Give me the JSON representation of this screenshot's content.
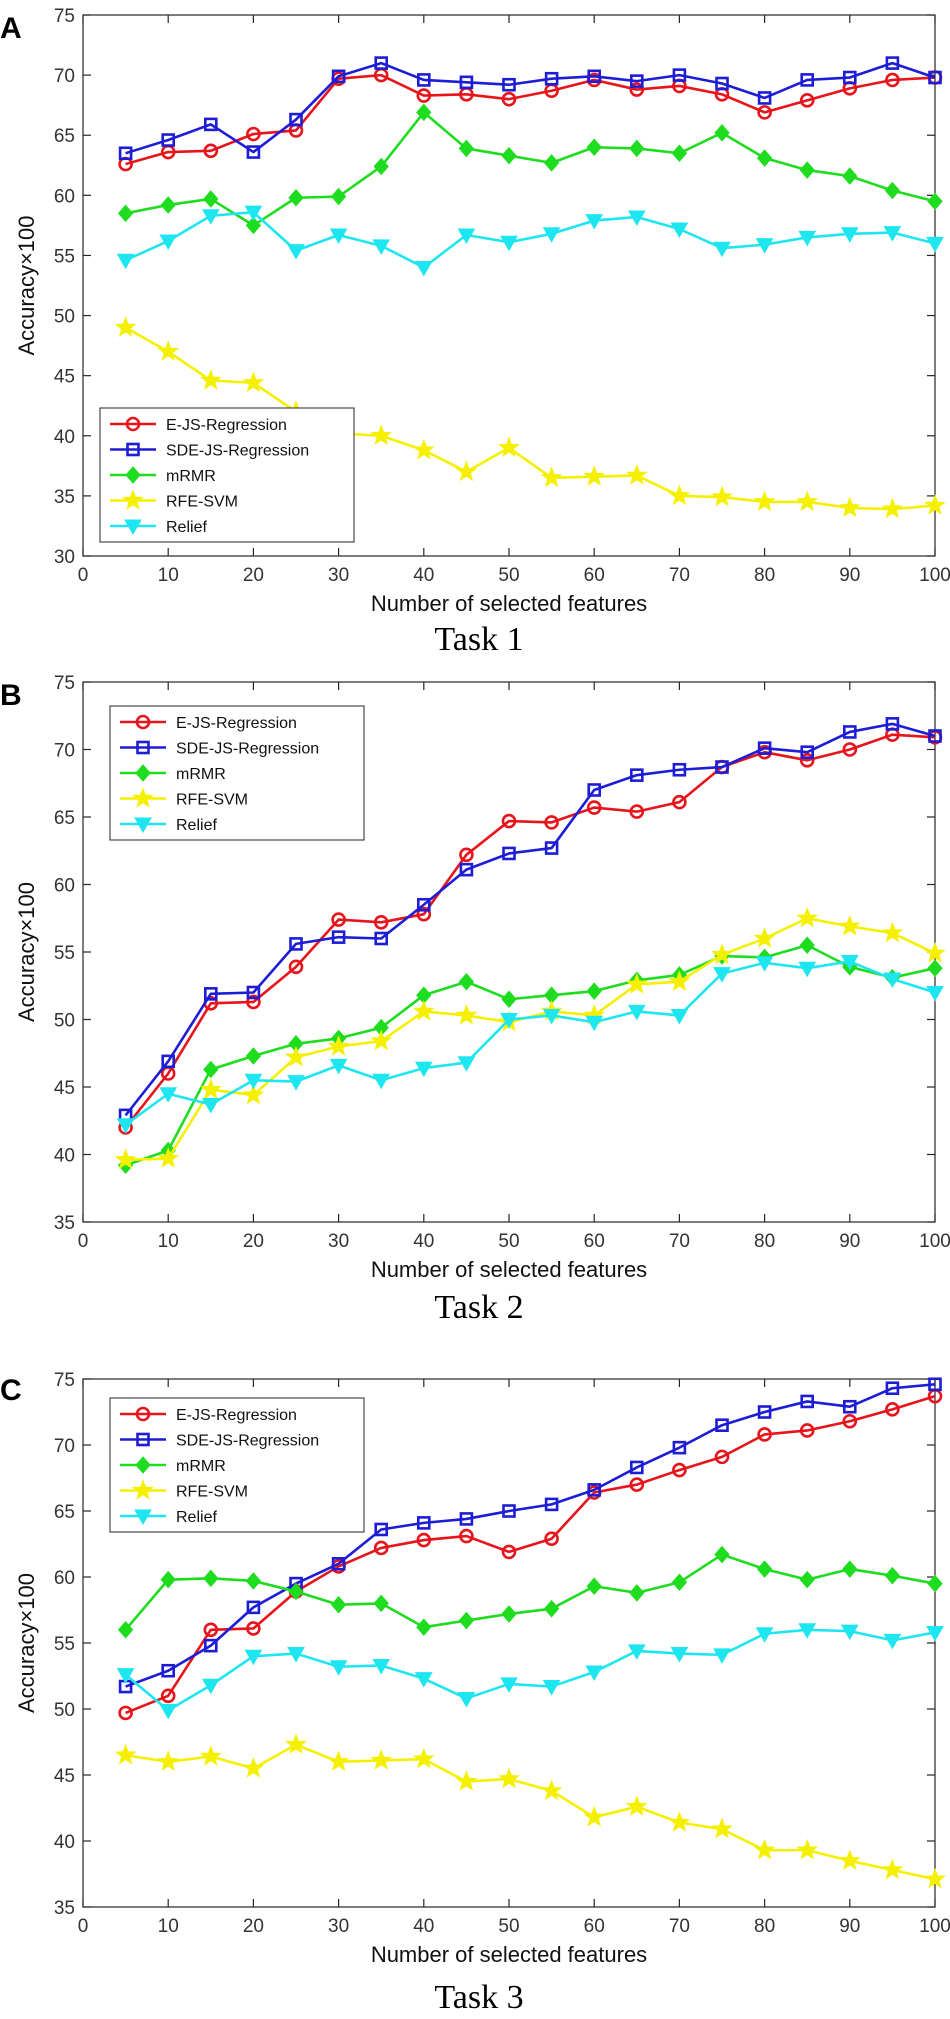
{
  "chart_data": [
    {
      "type": "line",
      "panel": "A",
      "caption": "Task 1",
      "xlabel": "Number of selected features",
      "ylabel": "Accuracy×100",
      "xlim": [
        0,
        100
      ],
      "ylim": [
        30,
        75
      ],
      "xticks": [
        0,
        10,
        20,
        30,
        40,
        50,
        60,
        70,
        80,
        90,
        100
      ],
      "yticks": [
        30,
        35,
        40,
        45,
        50,
        55,
        60,
        65,
        70,
        75
      ],
      "legend_position": "bottom-left",
      "x": [
        5,
        10,
        15,
        20,
        25,
        30,
        35,
        40,
        45,
        50,
        55,
        60,
        65,
        70,
        75,
        80,
        85,
        90,
        95,
        100
      ],
      "series": [
        {
          "name": "E-JS-Regression",
          "color": "#e8141b",
          "marker": "circle",
          "values": [
            62.6,
            63.6,
            63.7,
            65.1,
            65.4,
            69.7,
            70.0,
            68.3,
            68.4,
            68.0,
            68.7,
            69.6,
            68.8,
            69.1,
            68.4,
            66.9,
            67.9,
            68.9,
            69.6,
            69.8
          ]
        },
        {
          "name": "SDE-JS-Regression",
          "color": "#1d1dd6",
          "marker": "square",
          "values": [
            63.5,
            64.6,
            65.9,
            63.6,
            66.3,
            69.9,
            71.0,
            69.6,
            69.4,
            69.2,
            69.7,
            69.9,
            69.5,
            70.0,
            69.3,
            68.1,
            69.6,
            69.8,
            71.0,
            69.8
          ]
        },
        {
          "name": "mRMR",
          "color": "#1edc1e",
          "marker": "diamond",
          "values": [
            58.5,
            59.2,
            59.7,
            57.5,
            59.8,
            59.9,
            62.4,
            66.9,
            63.9,
            63.3,
            62.7,
            64.0,
            63.9,
            63.5,
            65.2,
            63.1,
            62.1,
            61.6,
            60.4,
            59.5
          ]
        },
        {
          "name": "RFE-SVM",
          "color": "#f5f000",
          "marker": "star",
          "values": [
            49.0,
            47.0,
            44.6,
            44.4,
            42.0,
            40.2,
            40.0,
            38.8,
            37.0,
            39.0,
            36.5,
            36.6,
            36.7,
            35.0,
            34.9,
            34.5,
            34.5,
            34.0,
            33.9,
            34.2
          ]
        },
        {
          "name": "Relief",
          "color": "#1ee6f0",
          "marker": "triangle-down",
          "values": [
            54.6,
            56.2,
            58.3,
            58.6,
            55.4,
            56.7,
            55.8,
            54.0,
            56.7,
            56.1,
            56.8,
            57.9,
            58.2,
            57.2,
            55.6,
            55.9,
            56.5,
            56.8,
            56.9,
            56.0
          ]
        }
      ]
    },
    {
      "type": "line",
      "panel": "B",
      "caption": "Task 2",
      "xlabel": "Number of selected features",
      "ylabel": "Accuracy×100",
      "xlim": [
        0,
        100
      ],
      "ylim": [
        35,
        75
      ],
      "xticks": [
        0,
        10,
        20,
        30,
        40,
        50,
        60,
        70,
        80,
        90,
        100
      ],
      "yticks": [
        35,
        40,
        45,
        50,
        55,
        60,
        65,
        70,
        75
      ],
      "legend_position": "top-left",
      "x": [
        5,
        10,
        15,
        20,
        25,
        30,
        35,
        40,
        45,
        50,
        55,
        60,
        65,
        70,
        75,
        80,
        85,
        90,
        95,
        100
      ],
      "series": [
        {
          "name": "E-JS-Regression",
          "color": "#e8141b",
          "marker": "circle",
          "values": [
            42.0,
            46.0,
            51.2,
            51.3,
            53.9,
            57.4,
            57.2,
            57.8,
            62.2,
            64.7,
            64.6,
            65.7,
            65.4,
            66.1,
            68.7,
            69.8,
            69.2,
            70.0,
            71.1,
            70.9
          ]
        },
        {
          "name": "SDE-JS-Regression",
          "color": "#1d1dd6",
          "marker": "square",
          "values": [
            42.9,
            46.9,
            51.9,
            52.0,
            55.6,
            56.1,
            56.0,
            58.5,
            61.1,
            62.3,
            62.7,
            67.0,
            68.1,
            68.5,
            68.7,
            70.1,
            69.8,
            71.3,
            71.9,
            71.0
          ]
        },
        {
          "name": "mRMR",
          "color": "#1edc1e",
          "marker": "diamond",
          "values": [
            39.2,
            40.3,
            46.3,
            47.3,
            48.2,
            48.6,
            49.4,
            51.8,
            52.8,
            51.5,
            51.8,
            52.1,
            52.9,
            53.3,
            54.7,
            54.6,
            55.5,
            53.9,
            53.1,
            53.8
          ]
        },
        {
          "name": "RFE-SVM",
          "color": "#f5f000",
          "marker": "star",
          "values": [
            39.6,
            39.7,
            44.8,
            44.4,
            47.2,
            48.0,
            48.4,
            50.6,
            50.3,
            49.8,
            50.6,
            50.3,
            52.6,
            52.8,
            54.8,
            56.0,
            57.5,
            56.9,
            56.4,
            54.9
          ]
        },
        {
          "name": "Relief",
          "color": "#1ee6f0",
          "marker": "triangle-down",
          "values": [
            42.2,
            44.5,
            43.7,
            45.5,
            45.4,
            46.6,
            45.5,
            46.4,
            46.8,
            50.0,
            50.3,
            49.8,
            50.6,
            50.3,
            53.4,
            54.2,
            53.8,
            54.3,
            53.0,
            52.0
          ]
        }
      ]
    },
    {
      "type": "line",
      "panel": "C",
      "caption": "Task 3",
      "xlabel": "Number of selected features",
      "ylabel": "Accuracy×100",
      "xlim": [
        0,
        100
      ],
      "ylim": [
        35,
        75
      ],
      "xticks": [
        0,
        10,
        20,
        30,
        40,
        50,
        60,
        70,
        80,
        90,
        100
      ],
      "yticks": [
        35,
        40,
        45,
        50,
        55,
        60,
        65,
        70,
        75
      ],
      "legend_position": "top-left",
      "x": [
        5,
        10,
        15,
        20,
        25,
        30,
        35,
        40,
        45,
        50,
        55,
        60,
        65,
        70,
        75,
        80,
        85,
        90,
        95,
        100
      ],
      "series": [
        {
          "name": "E-JS-Regression",
          "color": "#e8141b",
          "marker": "circle",
          "values": [
            49.7,
            51.0,
            56.0,
            56.1,
            58.9,
            60.8,
            62.2,
            62.8,
            63.1,
            61.9,
            62.9,
            66.4,
            67.0,
            68.1,
            69.1,
            70.8,
            71.1,
            71.8,
            72.7,
            73.7
          ]
        },
        {
          "name": "SDE-JS-Regression",
          "color": "#1d1dd6",
          "marker": "square",
          "values": [
            51.7,
            52.9,
            54.8,
            57.7,
            59.5,
            61.0,
            63.6,
            64.1,
            64.4,
            65.0,
            65.5,
            66.6,
            68.3,
            69.8,
            71.5,
            72.5,
            73.3,
            72.9,
            74.3,
            74.6
          ]
        },
        {
          "name": "mRMR",
          "color": "#1edc1e",
          "marker": "diamond",
          "values": [
            56.0,
            59.8,
            59.9,
            59.7,
            58.9,
            57.9,
            58.0,
            56.2,
            56.7,
            57.2,
            57.6,
            59.3,
            58.8,
            59.6,
            61.7,
            60.6,
            59.8,
            60.6,
            60.1,
            59.5
          ]
        },
        {
          "name": "RFE-SVM",
          "color": "#f5f000",
          "marker": "star",
          "values": [
            46.5,
            46.0,
            46.4,
            45.5,
            47.3,
            46.0,
            46.1,
            46.2,
            44.5,
            44.7,
            43.8,
            41.8,
            42.6,
            41.4,
            40.9,
            39.3,
            39.3,
            38.5,
            37.8,
            37.1
          ]
        },
        {
          "name": "Relief",
          "color": "#1ee6f0",
          "marker": "triangle-down",
          "values": [
            52.6,
            49.9,
            51.8,
            54.0,
            54.2,
            53.2,
            53.3,
            52.3,
            50.8,
            51.9,
            51.7,
            52.8,
            54.4,
            54.2,
            54.1,
            55.7,
            56.0,
            55.9,
            55.2,
            55.8
          ]
        }
      ]
    }
  ]
}
